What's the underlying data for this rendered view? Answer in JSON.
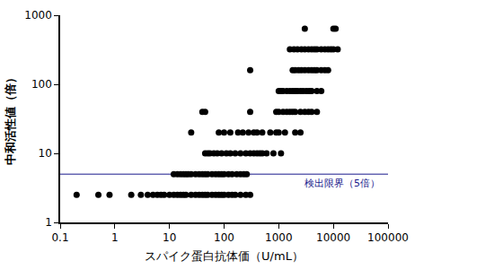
{
  "chart_data": {
    "type": "scatter",
    "x_label": "スパイク蛋白抗体価（U/mL）",
    "y_label": "中和活性値（倍）",
    "log": true,
    "grid": false,
    "color": "#000000",
    "marker": "circle",
    "xlim": [
      0.1,
      100000
    ],
    "xticks": [
      0.1,
      1,
      10,
      100,
      1000,
      10000,
      100000
    ],
    "ylim": [
      1,
      1000
    ],
    "yticks": [
      1,
      10,
      100,
      1000
    ],
    "threshold": {
      "value": 5,
      "label": "検出限界（5倍）",
      "color": "#1a1a8c"
    },
    "x": [
      0.2,
      0.5,
      0.8,
      2,
      3,
      4,
      5,
      6,
      7,
      8,
      10,
      12,
      14,
      16,
      18,
      20,
      25,
      30,
      35,
      40,
      45,
      50,
      60,
      70,
      80,
      90,
      100,
      120,
      140,
      160,
      200,
      250,
      300,
      12,
      14,
      16,
      18,
      20,
      22,
      25,
      30,
      35,
      40,
      45,
      50,
      60,
      70,
      80,
      90,
      100,
      120,
      140,
      170,
      200,
      230,
      260,
      45,
      50,
      55,
      65,
      75,
      90,
      110,
      130,
      160,
      200,
      250,
      300,
      350,
      400,
      450,
      500,
      600,
      800,
      1100,
      25,
      80,
      100,
      130,
      180,
      220,
      280,
      350,
      400,
      500,
      700,
      900,
      1000,
      1300,
      2000,
      2500,
      40,
      45,
      300,
      900,
      1000,
      1200,
      1400,
      1600,
      1800,
      2000,
      2500,
      3000,
      3500,
      4000,
      5000,
      1000,
      1100,
      1200,
      1400,
      1600,
      1800,
      2000,
      2200,
      2500,
      2800,
      3200,
      3600,
      4000,
      5000,
      6000,
      300,
      1800,
      2000,
      2300,
      2600,
      3000,
      3500,
      4000,
      4500,
      5000,
      6000,
      7000,
      8000,
      1600,
      1900,
      2200,
      2600,
      3000,
      3500,
      4000,
      4500,
      5000,
      6000,
      7000,
      8000,
      9000,
      10000,
      12000,
      3000,
      10000,
      11000
    ],
    "values": [
      2.5,
      2.5,
      2.5,
      2.5,
      2.5,
      2.5,
      2.5,
      2.5,
      2.5,
      2.5,
      2.5,
      2.5,
      2.5,
      2.5,
      2.5,
      2.5,
      2.5,
      2.5,
      2.5,
      2.5,
      2.5,
      2.5,
      2.5,
      2.5,
      2.5,
      2.5,
      2.5,
      2.5,
      2.5,
      2.5,
      2.5,
      2.5,
      2.5,
      5,
      5,
      5,
      5,
      5,
      5,
      5,
      5,
      5,
      5,
      5,
      5,
      5,
      5,
      5,
      5,
      5,
      5,
      5,
      5,
      5,
      5,
      5,
      10,
      10,
      10,
      10,
      10,
      10,
      10,
      10,
      10,
      10,
      10,
      10,
      10,
      10,
      10,
      10,
      10,
      10,
      10,
      20,
      20,
      20,
      20,
      20,
      20,
      20,
      20,
      20,
      20,
      20,
      20,
      20,
      20,
      20,
      20,
      40,
      40,
      40,
      40,
      40,
      40,
      40,
      40,
      40,
      40,
      40,
      40,
      40,
      40,
      40,
      80,
      80,
      80,
      80,
      80,
      80,
      80,
      80,
      80,
      80,
      80,
      80,
      80,
      80,
      80,
      160,
      160,
      160,
      160,
      160,
      160,
      160,
      160,
      160,
      160,
      160,
      160,
      160,
      320,
      320,
      320,
      320,
      320,
      320,
      320,
      320,
      320,
      320,
      320,
      320,
      320,
      320,
      320,
      640,
      640,
      640
    ]
  }
}
